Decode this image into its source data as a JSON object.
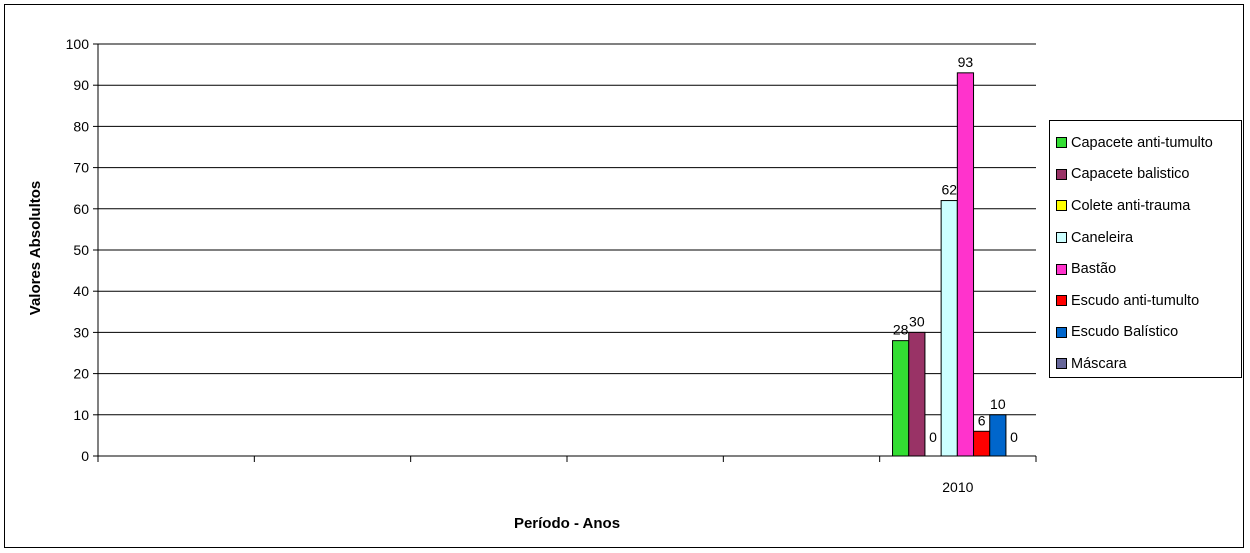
{
  "chart_data": {
    "type": "bar",
    "categories": [
      "2010"
    ],
    "ylabel": "Valores Absolultos",
    "xlabel": "Período - Anos",
    "ylim": [
      0,
      100
    ],
    "yticks": [
      0,
      10,
      20,
      30,
      40,
      50,
      60,
      70,
      80,
      90,
      100
    ],
    "grid": true,
    "legend_position": "right",
    "series": [
      {
        "name": "Capacete anti-tumulto",
        "values": [
          28
        ],
        "color": "#33dd33",
        "label": "28"
      },
      {
        "name": "Capacete balistico",
        "values": [
          30
        ],
        "color": "#993366",
        "label": "30"
      },
      {
        "name": "Colete anti-trauma",
        "values": [
          0
        ],
        "color": "#ffff00",
        "label": "0"
      },
      {
        "name": "Caneleira",
        "values": [
          62
        ],
        "color": "#ccffff",
        "label": "62"
      },
      {
        "name": "Bastão",
        "values": [
          93
        ],
        "color": "#ff33cc",
        "label": "93"
      },
      {
        "name": "Escudo anti-tumulto",
        "values": [
          6
        ],
        "color": "#ff0000",
        "label": "6"
      },
      {
        "name": "Escudo Balístico",
        "values": [
          10
        ],
        "color": "#0066cc",
        "label": "10"
      },
      {
        "name": "Máscara",
        "values": [
          0
        ],
        "color": "#666699",
        "label": "0"
      }
    ]
  }
}
